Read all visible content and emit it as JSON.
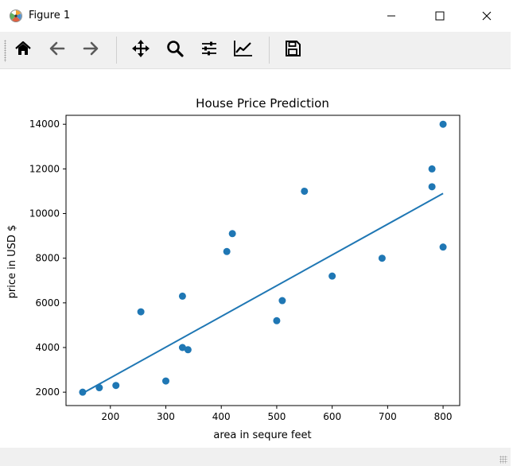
{
  "window": {
    "title": "Figure 1",
    "icons": {
      "app": "matplotlib-icon",
      "minimize": "minimize-icon",
      "maximize": "maximize-icon",
      "close": "close-icon"
    }
  },
  "toolbar": {
    "items": [
      {
        "name": "home",
        "icon": "home-icon"
      },
      {
        "name": "back",
        "icon": "arrow-left-icon"
      },
      {
        "name": "forward",
        "icon": "arrow-right-icon"
      },
      {
        "name": "pan",
        "icon": "move-icon"
      },
      {
        "name": "zoom",
        "icon": "magnifier-icon"
      },
      {
        "name": "subplots",
        "icon": "sliders-icon"
      },
      {
        "name": "edit-axis",
        "icon": "line-chart-icon"
      },
      {
        "name": "save",
        "icon": "floppy-disk-icon"
      }
    ]
  },
  "colors": {
    "series": "#1f77b4",
    "toolbar_bg": "#f0f0f0"
  },
  "chart_data": {
    "type": "scatter",
    "title": "House Price Prediction",
    "xlabel": "area in sequre feet",
    "ylabel": "price in USD $",
    "xlim": [
      120,
      830
    ],
    "ylim": [
      1400,
      14400
    ],
    "xticks": [
      200,
      300,
      400,
      500,
      600,
      700,
      800
    ],
    "yticks": [
      2000,
      4000,
      6000,
      8000,
      10000,
      12000,
      14000
    ],
    "grid": false,
    "series": [
      {
        "kind": "scatter",
        "x": [
          150,
          180,
          210,
          255,
          300,
          330,
          330,
          340,
          410,
          420,
          500,
          510,
          550,
          600,
          690,
          780,
          780,
          800,
          800
        ],
        "y": [
          2000,
          2200,
          2300,
          5600,
          2500,
          6300,
          4000,
          3900,
          8300,
          9100,
          5200,
          6100,
          11000,
          7200,
          8000,
          12000,
          11200,
          14000,
          8500
        ]
      },
      {
        "kind": "line",
        "x": [
          150,
          800
        ],
        "y": [
          1950,
          10900
        ]
      }
    ]
  }
}
